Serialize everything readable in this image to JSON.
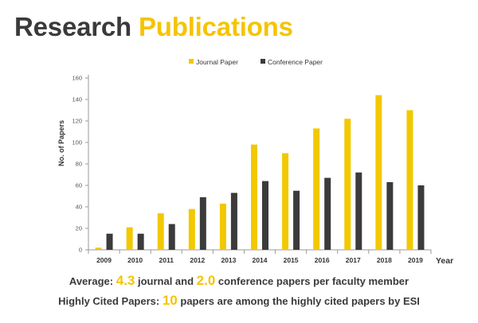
{
  "header": {
    "title_part1": "Research",
    "title_part2": "Publications"
  },
  "colors": {
    "accent": "#f5c400",
    "dark": "#3a3a3a",
    "journal": "#f2c800",
    "conference": "#3b3b3b"
  },
  "chart_data": {
    "type": "bar",
    "title": "",
    "xlabel": "Year",
    "ylabel": "No. of Papers",
    "ylim": [
      0,
      160
    ],
    "yticks": [
      0,
      20,
      40,
      60,
      80,
      100,
      120,
      140,
      160
    ],
    "grid": false,
    "legend_position": "top",
    "categories": [
      "2009",
      "2010",
      "2011",
      "2012",
      "2013",
      "2014",
      "2015",
      "2016",
      "2017",
      "2018",
      "2019"
    ],
    "series": [
      {
        "name": "Journal Paper",
        "color": "#f2c800",
        "values": [
          2,
          21,
          34,
          38,
          43,
          98,
          90,
          113,
          122,
          144,
          130
        ]
      },
      {
        "name": "Conference Paper",
        "color": "#3b3b3b",
        "values": [
          15,
          15,
          24,
          49,
          53,
          64,
          55,
          67,
          72,
          63,
          60
        ]
      }
    ]
  },
  "summary": {
    "line1_prefix": "Average:",
    "avg_journal": "4.3",
    "line1_middle": "journal and",
    "avg_conference": "2.0",
    "line1_suffix": "conference papers per faculty member",
    "line2_prefix": "Highly Cited Papers:",
    "highly_cited": "10",
    "line2_suffix": "papers are among the highly cited papers by ESI"
  }
}
